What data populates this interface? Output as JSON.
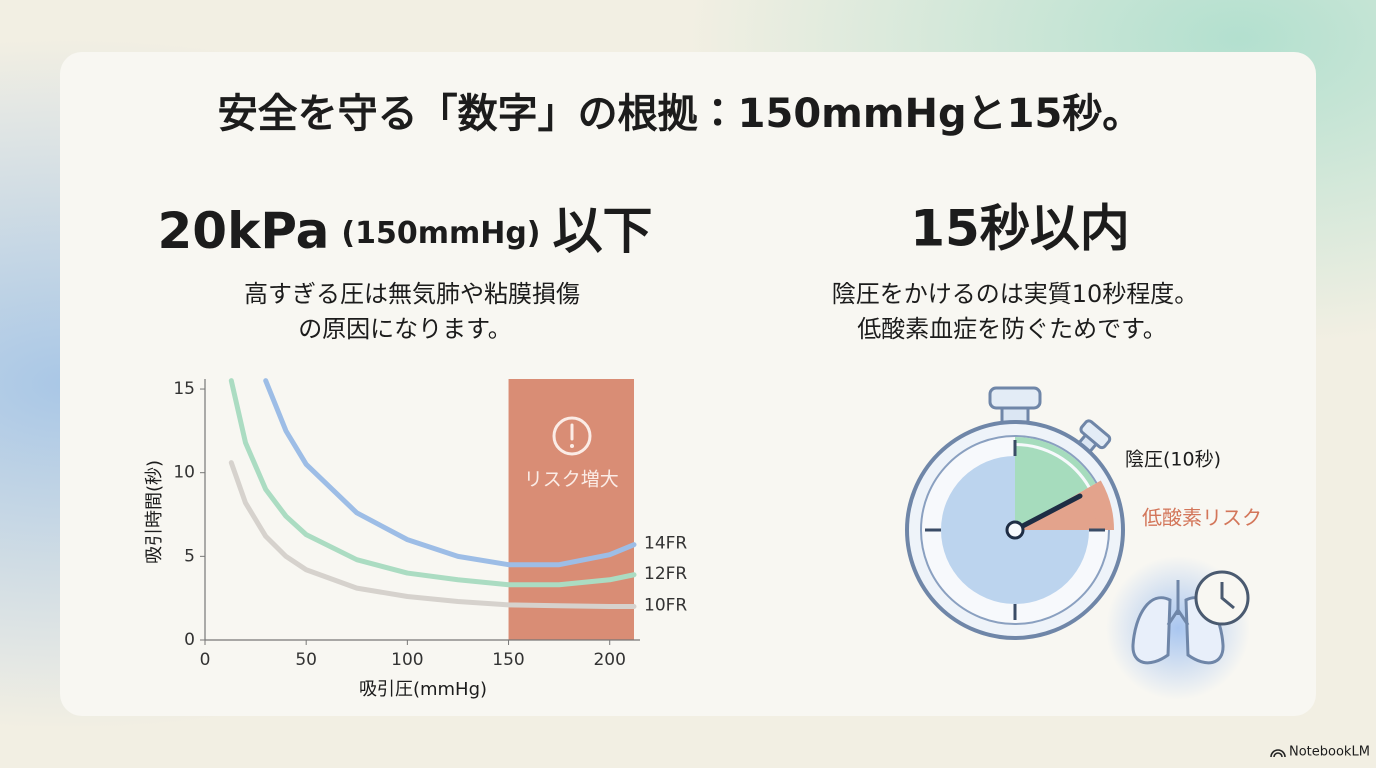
{
  "title": "安全を守る「数字」の根拠：150mmHgと15秒。",
  "left": {
    "heading": [
      "20kPa",
      "(150mmHg)",
      "以下"
    ],
    "description": [
      "高すぎる圧は無気肺や粘膜損傷",
      "の原因になります。"
    ]
  },
  "right": {
    "heading": "15秒以内",
    "description": [
      "陰圧をかけるのは実質10秒程度。",
      "低酸素血症を防ぐためです。"
    ],
    "labels": [
      "陰圧(10秒)",
      "低酸素リスク"
    ]
  },
  "footer": "NotebookLM",
  "chart_data": {
    "type": "line",
    "xlabel": "吸引圧(mmHg)",
    "ylabel": "吸引時間(秒)",
    "x": [
      13,
      20,
      30,
      40,
      50,
      75,
      100,
      125,
      150,
      175,
      200,
      212
    ],
    "series": [
      {
        "name": "14FR",
        "color": "#9dbde6",
        "values": [
          null,
          null,
          15.5,
          12.5,
          10.5,
          7.6,
          6.0,
          5.0,
          4.5,
          4.5,
          5.1,
          5.7
        ]
      },
      {
        "name": "12FR",
        "color": "#abdcc2",
        "values": [
          15.5,
          11.8,
          9.0,
          7.4,
          6.3,
          4.8,
          4.0,
          3.6,
          3.3,
          3.3,
          3.6,
          3.9
        ]
      },
      {
        "name": "10FR",
        "color": "#d6d2cd",
        "values": [
          10.6,
          8.2,
          6.2,
          5.0,
          4.2,
          3.1,
          2.6,
          2.3,
          2.1,
          2.05,
          2.0,
          2.0
        ]
      }
    ],
    "risk_zone": {
      "from": 150,
      "to": 212,
      "label": "リスク増大",
      "color": "#d98d75"
    },
    "xlim": [
      0,
      212
    ],
    "ylim": [
      0,
      15.6
    ],
    "xticks": [
      0,
      50,
      100,
      150,
      200
    ],
    "yticks": [
      0,
      5,
      10,
      15
    ]
  }
}
